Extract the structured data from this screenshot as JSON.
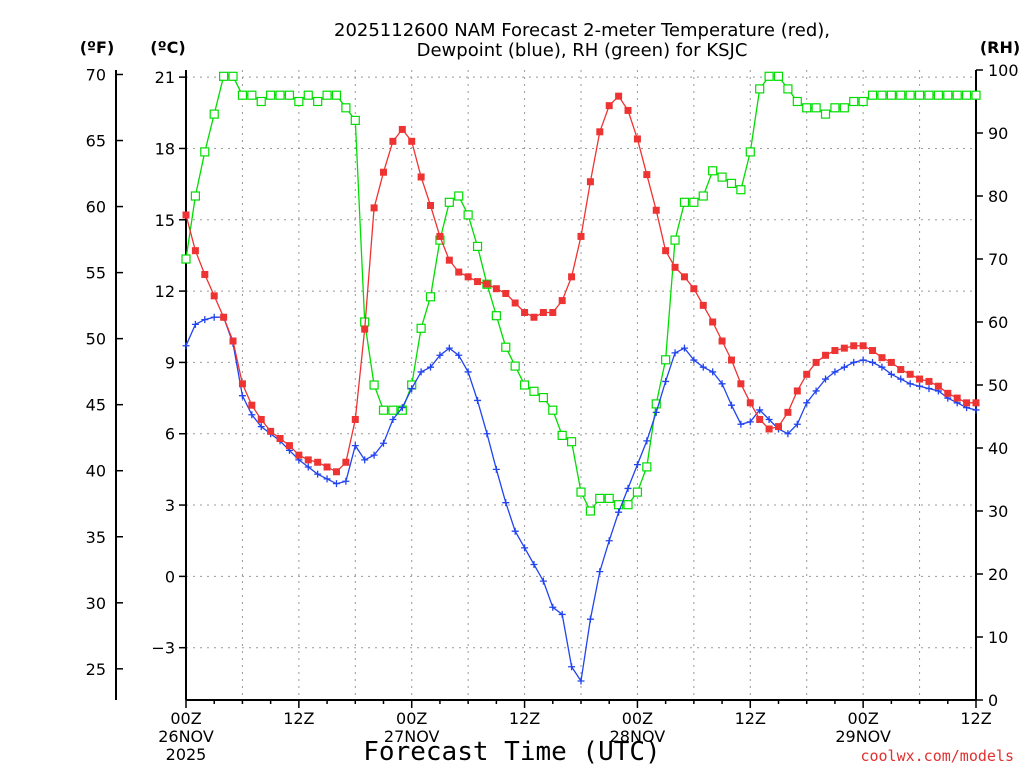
{
  "title_line1": "2025112600 NAM Forecast 2-meter Temperature (red),",
  "title_line2": "Dewpoint (blue), RH (green) for KSJC",
  "unit_f": "(ºF)",
  "unit_c": "(ºC)",
  "unit_rh": "(RH)",
  "xlabel": "Forecast Time (UTC)",
  "credit": "coolwx.com/models",
  "colors": {
    "temperature": "#ee3333",
    "dewpoint": "#2244ee",
    "rh": "#00dd00",
    "grid": "#999999",
    "credit": "#e03030"
  },
  "x_ticks": [
    {
      "hour": 0,
      "label": "00Z",
      "date": "26NOV",
      "year": "2025"
    },
    {
      "hour": 12,
      "label": "12Z",
      "date": "",
      "year": ""
    },
    {
      "hour": 24,
      "label": "00Z",
      "date": "27NOV",
      "year": ""
    },
    {
      "hour": 36,
      "label": "12Z",
      "date": "",
      "year": ""
    },
    {
      "hour": 48,
      "label": "00Z",
      "date": "28NOV",
      "year": ""
    },
    {
      "hour": 60,
      "label": "12Z",
      "date": "",
      "year": ""
    },
    {
      "hour": 72,
      "label": "00Z",
      "date": "29NOV",
      "year": ""
    },
    {
      "hour": 84,
      "label": "12Z",
      "date": "",
      "year": ""
    }
  ],
  "chart_data": {
    "type": "line",
    "title": "2025112600 NAM Forecast 2-meter Temperature (red), Dewpoint (blue), RH (green) for KSJC",
    "xlabel": "Forecast Time (UTC)",
    "xlim": [
      0,
      84
    ],
    "ylim_c": [
      -5.2,
      21.3
    ],
    "ylim_rh": [
      0,
      100
    ],
    "y_ticks_c": [
      "-3",
      "0",
      "3",
      "6",
      "9",
      "12",
      "15",
      "18",
      "21"
    ],
    "y_ticks_f": [
      "25",
      "30",
      "35",
      "40",
      "45",
      "50",
      "55",
      "60",
      "65",
      "70"
    ],
    "y_ticks_rh": [
      "0",
      "10",
      "20",
      "30",
      "40",
      "50",
      "60",
      "70",
      "80",
      "90",
      "100"
    ],
    "x": [
      0,
      1,
      2,
      3,
      4,
      5,
      6,
      7,
      8,
      9,
      10,
      11,
      12,
      13,
      14,
      15,
      16,
      17,
      18,
      19,
      20,
      21,
      22,
      23,
      24,
      25,
      26,
      27,
      28,
      29,
      30,
      31,
      32,
      33,
      34,
      35,
      36,
      37,
      38,
      39,
      40,
      41,
      42,
      43,
      44,
      45,
      46,
      47,
      48,
      49,
      50,
      51,
      52,
      53,
      54,
      55,
      56,
      57,
      58,
      59,
      60,
      61,
      62,
      63,
      64,
      65,
      66,
      67,
      68,
      69,
      70,
      71,
      72,
      73,
      74,
      75,
      76,
      77,
      78,
      79,
      80,
      81,
      82,
      83,
      84
    ],
    "series": [
      {
        "name": "2-meter Temperature (°C)",
        "values": [
          15.2,
          13.7,
          12.7,
          11.8,
          10.9,
          9.9,
          8.1,
          7.2,
          6.6,
          6.1,
          5.8,
          5.5,
          5.1,
          4.9,
          4.8,
          4.6,
          4.4,
          4.8,
          6.6,
          10.4,
          15.5,
          17.0,
          18.3,
          18.8,
          18.3,
          16.8,
          15.6,
          14.3,
          13.3,
          12.8,
          12.6,
          12.4,
          12.3,
          12.1,
          11.9,
          11.5,
          11.1,
          10.9,
          11.1,
          11.1,
          11.6,
          12.6,
          14.3,
          16.6,
          18.7,
          19.8,
          20.2,
          19.6,
          18.4,
          16.9,
          15.4,
          13.7,
          13.0,
          12.6,
          12.1,
          11.4,
          10.7,
          9.9,
          9.1,
          8.1,
          7.3,
          6.6,
          6.2,
          6.3,
          6.9,
          7.8,
          8.5,
          9.0,
          9.3,
          9.5,
          9.6,
          9.7,
          9.7,
          9.5,
          9.2,
          9.0,
          8.7,
          8.5,
          8.3,
          8.2,
          8.0,
          7.7,
          7.5,
          7.3,
          7.3
        ]
      },
      {
        "name": "Dewpoint (°C)",
        "values": [
          9.7,
          10.6,
          10.8,
          10.9,
          10.9,
          9.8,
          7.6,
          6.8,
          6.3,
          6.0,
          5.7,
          5.3,
          4.9,
          4.6,
          4.3,
          4.1,
          3.9,
          4.0,
          5.5,
          4.9,
          5.1,
          5.6,
          6.6,
          7.1,
          7.9,
          8.6,
          8.8,
          9.3,
          9.6,
          9.3,
          8.6,
          7.4,
          6.0,
          4.5,
          3.1,
          1.9,
          1.2,
          0.5,
          -0.2,
          -1.3,
          -1.6,
          -3.8,
          -4.4,
          -1.8,
          0.2,
          1.5,
          2.7,
          3.7,
          4.7,
          5.7,
          6.9,
          8.2,
          9.4,
          9.6,
          9.1,
          8.8,
          8.6,
          8.1,
          7.2,
          6.4,
          6.5,
          7.0,
          6.6,
          6.2,
          6.0,
          6.4,
          7.3,
          7.8,
          8.3,
          8.6,
          8.8,
          9.0,
          9.1,
          9.0,
          8.8,
          8.5,
          8.3,
          8.1,
          8.0,
          7.9,
          7.8,
          7.5,
          7.3,
          7.1,
          7.0
        ]
      },
      {
        "name": "RH (%)",
        "values": [
          70,
          80,
          87,
          93,
          99,
          99,
          96,
          96,
          95,
          96,
          96,
          96,
          95,
          96,
          95,
          96,
          96,
          94,
          92,
          60,
          50,
          46,
          46,
          46,
          50,
          59,
          64,
          73,
          79,
          80,
          77,
          72,
          66,
          61,
          56,
          53,
          50,
          49,
          48,
          46,
          42,
          41,
          33,
          30,
          32,
          32,
          31,
          31,
          33,
          37,
          47,
          54,
          73,
          79,
          79,
          80,
          84,
          83,
          82,
          81,
          87,
          97,
          99,
          99,
          97,
          95,
          94,
          94,
          93,
          94,
          94,
          95,
          95,
          96,
          96,
          96,
          96,
          96,
          96,
          96,
          96,
          96,
          96,
          96,
          96
        ]
      }
    ]
  }
}
